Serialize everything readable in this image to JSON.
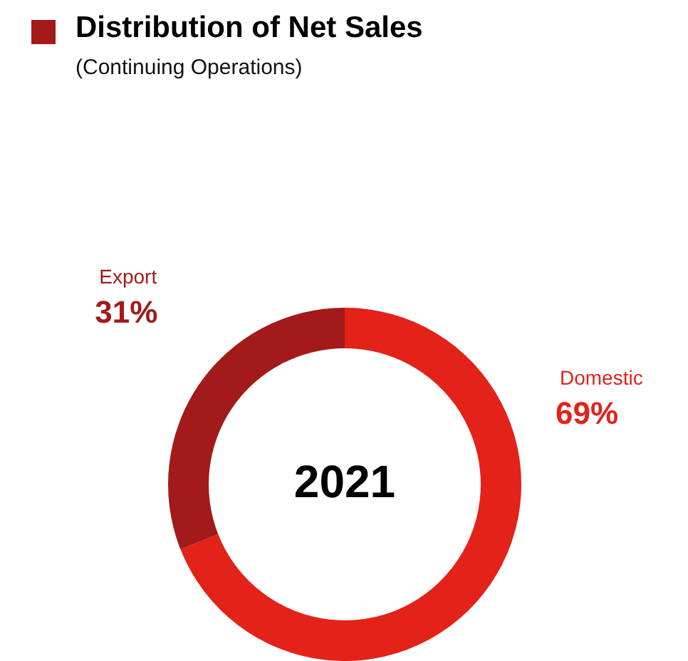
{
  "chart_data": {
    "type": "donut",
    "title": "Distribution of Net Sales",
    "subtitle": "(Continuing Operations)",
    "categories": [
      "Domestic",
      "Export"
    ],
    "values": [
      69,
      31
    ],
    "colors": [
      "#e32219",
      "#a31a1a"
    ],
    "value_labels": [
      "69%",
      "31%"
    ],
    "annotations": [
      "2021"
    ],
    "legend": false
  }
}
